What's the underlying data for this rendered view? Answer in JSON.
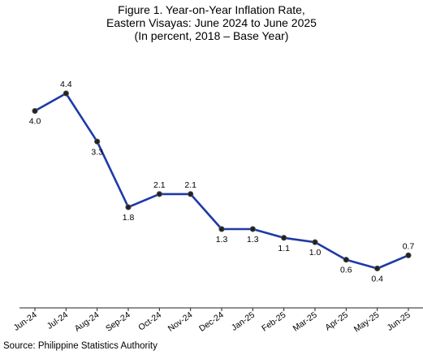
{
  "title_lines": [
    "Figure 1. Year-on-Year Inflation Rate,",
    "Eastern Visayas: June 2024 to June 2025",
    "(In percent, 2018 – Base Year)"
  ],
  "source": "Source: Philippine Statistics Authority",
  "colors": {
    "line": "#1f3aa6",
    "marker": "#222222"
  },
  "chart_data": {
    "type": "line",
    "title": "Figure 1. Year-on-Year Inflation Rate, Eastern Visayas: June 2024 to June 2025 (In percent, 2018 – Base Year)",
    "categories": [
      "Jun-24",
      "Jul-24",
      "Aug-24",
      "Sep-24",
      "Oct-24",
      "Nov-24",
      "Dec-24",
      "Jan-25",
      "Feb-25",
      "Mar-25",
      "Apr-25",
      "May-25",
      "Jun-25"
    ],
    "values": [
      4.0,
      4.4,
      3.3,
      1.8,
      2.1,
      2.1,
      1.3,
      1.3,
      1.1,
      1.0,
      0.6,
      0.4,
      0.7
    ],
    "labels": [
      "4.0",
      "4.4",
      "3.3",
      "1.8",
      "2.1",
      "2.1",
      "1.3",
      "1.3",
      "1.1",
      "1.0",
      "0.6",
      "0.4",
      "0.7"
    ],
    "label_positions": [
      "below",
      "above",
      "below",
      "below",
      "above",
      "above",
      "below",
      "below",
      "below",
      "below",
      "below",
      "below",
      "above"
    ],
    "xlabel": "",
    "ylabel": "",
    "ylim": [
      0,
      4.4
    ],
    "grid": false,
    "legend": "none"
  }
}
